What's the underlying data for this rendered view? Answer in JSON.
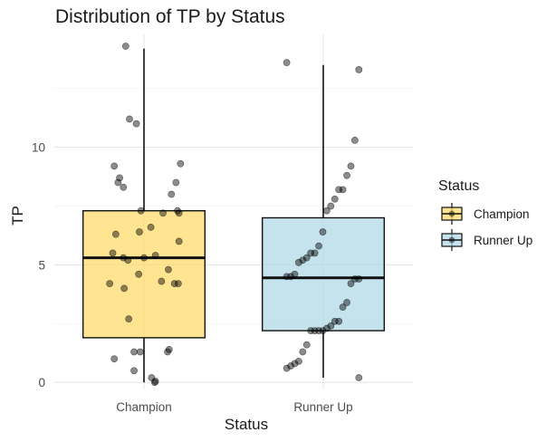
{
  "chart_data": {
    "type": "box",
    "title": "Distribution of TP by Status",
    "xlabel": "Status",
    "ylabel": "TP",
    "categories": [
      "Champion",
      "Runner Up"
    ],
    "ylim": [
      -0.3,
      14.8
    ],
    "yticks": [
      0,
      5,
      10
    ],
    "grid": true,
    "legend": {
      "title": "Status",
      "placement": "right"
    },
    "series": [
      {
        "name": "Champion",
        "color": "#FFD966",
        "stats": {
          "min": 0.0,
          "q1": 1.9,
          "median": 5.3,
          "q3": 7.3,
          "max": 14.2
        },
        "points": [
          14.3,
          11.2,
          11.0,
          9.3,
          9.2,
          8.7,
          8.5,
          8.5,
          8.3,
          8.0,
          7.3,
          7.3,
          7.2,
          7.2,
          6.6,
          6.4,
          6.3,
          6.0,
          5.5,
          5.4,
          5.3,
          5.3,
          5.2,
          4.8,
          4.6,
          4.3,
          4.2,
          4.2,
          4.2,
          4.0,
          2.7,
          1.4,
          1.3,
          1.3,
          1.3,
          1.0,
          0.5,
          0.2,
          0.05,
          0.0
        ],
        "jitter": [
          -0.24,
          -0.19,
          -0.1,
          0.48,
          -0.39,
          -0.32,
          0.42,
          -0.34,
          -0.27,
          0.36,
          -0.04,
          0.44,
          0.46,
          0.25,
          0.09,
          -0.06,
          -0.37,
          0.46,
          -0.41,
          0.15,
          -0.27,
          0.0,
          -0.21,
          0.32,
          -0.07,
          0.23,
          -0.45,
          0.4,
          0.45,
          -0.26,
          -0.2,
          0.33,
          0.31,
          -0.05,
          -0.13,
          -0.39,
          -0.13,
          0.1,
          0.15,
          0.14
        ]
      },
      {
        "name": "Runner Up",
        "color": "#ADD8E6",
        "stats": {
          "min": 0.2,
          "q1": 2.2,
          "median": 4.45,
          "q3": 7.0,
          "max": 13.5
        },
        "points": [
          13.6,
          13.3,
          10.3,
          9.2,
          8.8,
          8.2,
          8.2,
          7.8,
          7.5,
          7.3,
          6.4,
          5.8,
          5.5,
          5.5,
          5.3,
          5.2,
          5.1,
          4.6,
          4.5,
          4.5,
          4.4,
          4.4,
          4.2,
          3.4,
          3.2,
          2.6,
          2.6,
          2.4,
          2.3,
          2.2,
          2.2,
          2.2,
          2.2,
          1.6,
          1.3,
          0.9,
          0.8,
          0.7,
          0.6,
          0.2
        ]
      }
    ]
  }
}
